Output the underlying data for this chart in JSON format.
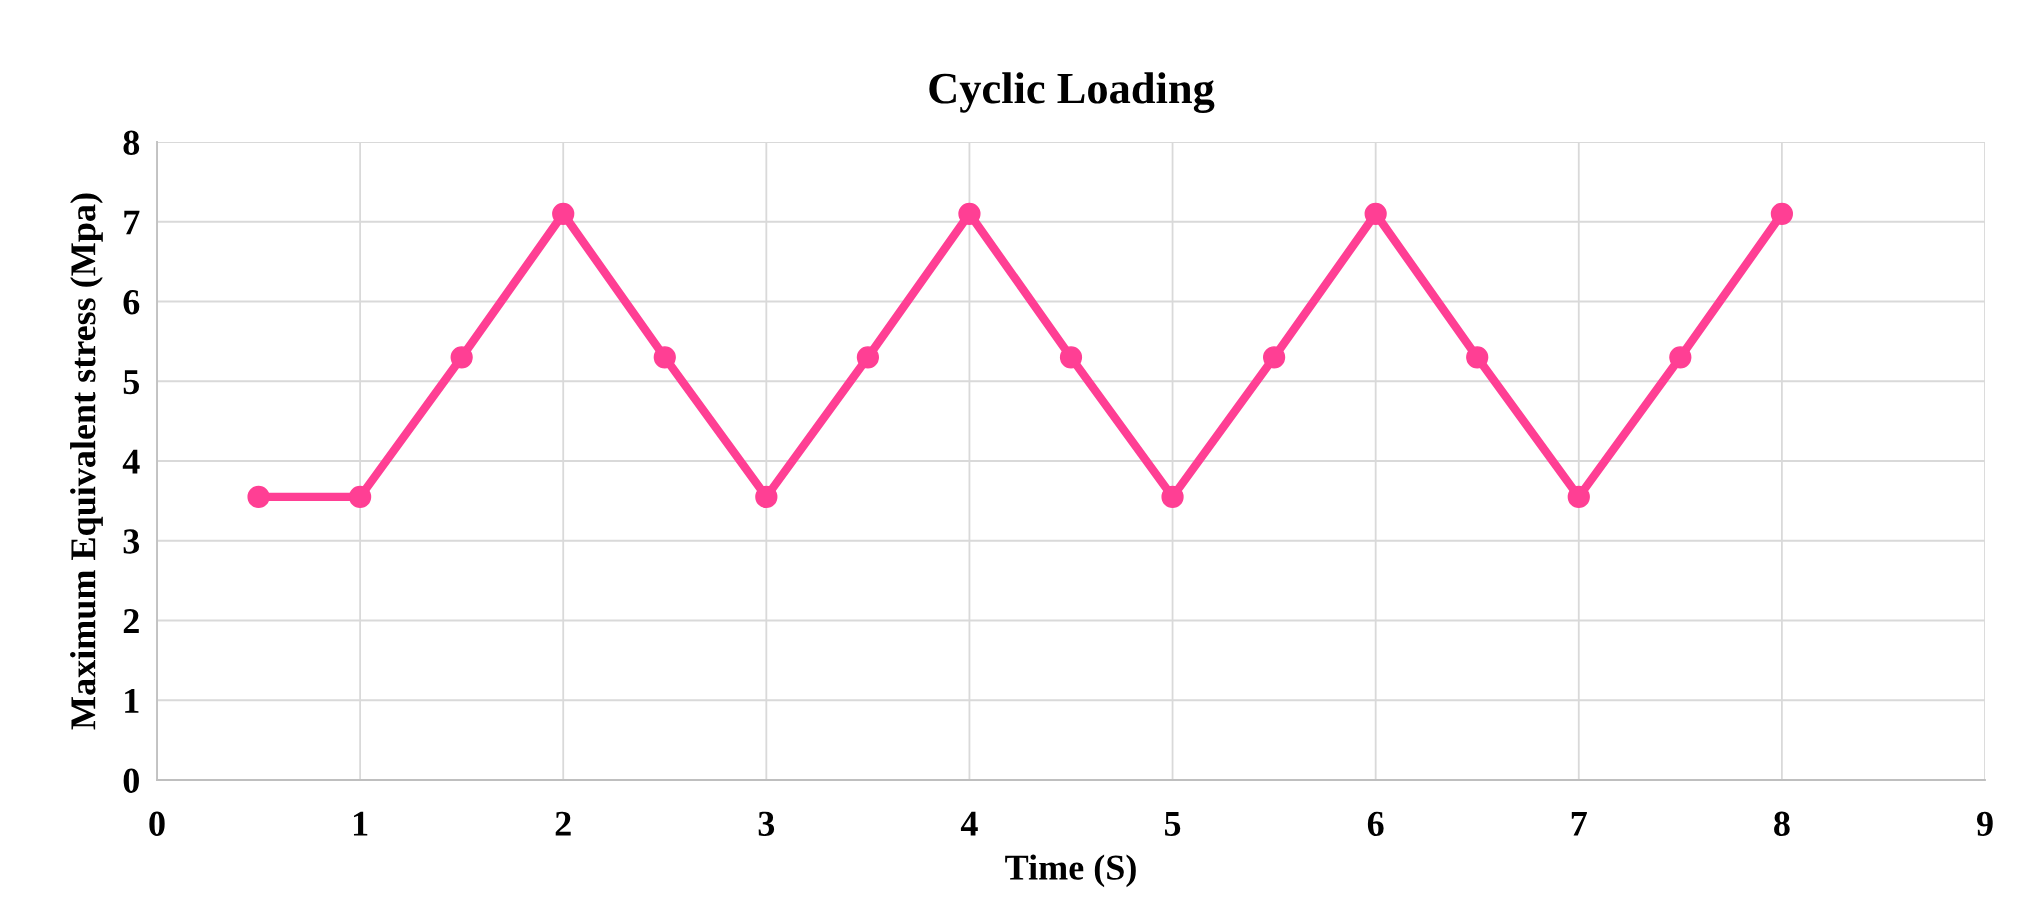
{
  "chart_data": {
    "type": "line",
    "title": "Cyclic Loading",
    "xlabel": "Time (S)",
    "ylabel": "Maximum Equivalent stress (Mpa)",
    "x": [
      0.5,
      1,
      1.5,
      2,
      2.5,
      3,
      3.5,
      4,
      4.5,
      5,
      5.5,
      6,
      6.5,
      7,
      7.5,
      8
    ],
    "series": [
      {
        "color": "#ff3f94",
        "values": [
          3.55,
          3.55,
          5.3,
          7.1,
          5.3,
          3.55,
          5.3,
          7.1,
          5.3,
          3.55,
          5.3,
          7.1,
          5.3,
          3.55,
          5.3,
          7.1
        ]
      }
    ],
    "xlim": [
      0,
      9
    ],
    "xticks": [
      0,
      1,
      2,
      3,
      4,
      5,
      6,
      7,
      8,
      9
    ],
    "ylim": [
      0,
      8
    ],
    "yticks": [
      0,
      1,
      2,
      3,
      4,
      5,
      6,
      7,
      8
    ],
    "grid": true,
    "marker": "circle",
    "line_style": "solid"
  }
}
